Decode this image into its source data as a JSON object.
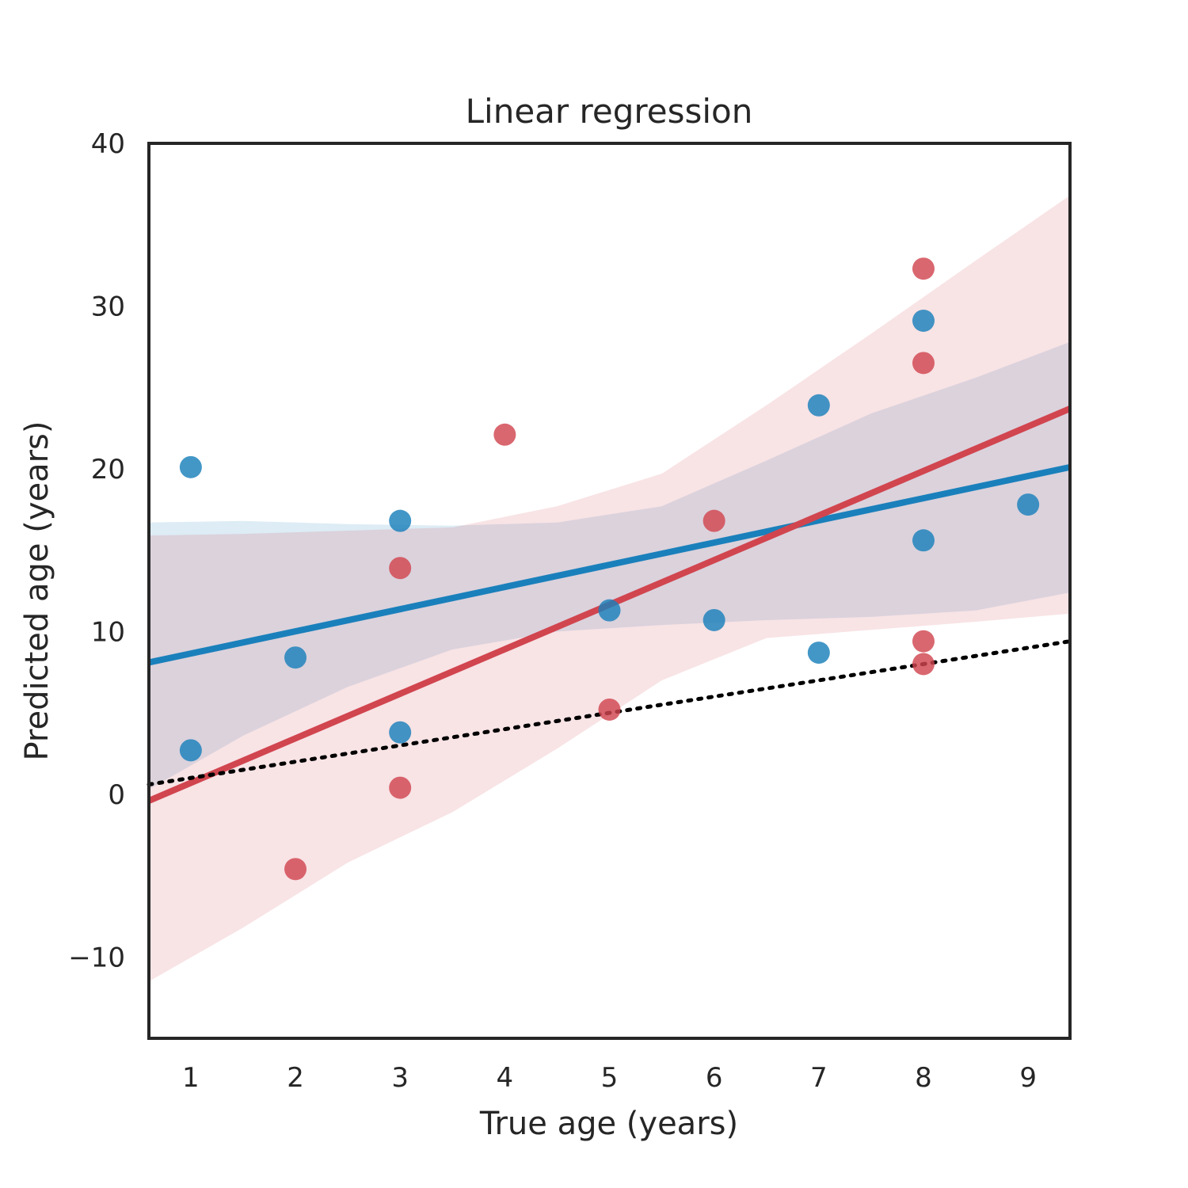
{
  "chart_data": {
    "type": "scatter",
    "title": "Linear regression",
    "xlabel": "True age (years)",
    "ylabel": "Predicted age (years)",
    "xlim": [
      0.6,
      9.4
    ],
    "ylim": [
      -15,
      40
    ],
    "xticks": [
      1,
      2,
      3,
      4,
      5,
      6,
      7,
      8,
      9
    ],
    "yticks": [
      -10,
      0,
      10,
      20,
      30,
      40
    ],
    "ytick_labels": [
      "−10",
      "0",
      "10",
      "20",
      "30",
      "40"
    ],
    "grid": false,
    "legend": "none",
    "series": [
      {
        "color": "#1a80bb",
        "points": [
          {
            "x": 1,
            "y": 20.1
          },
          {
            "x": 1,
            "y": 2.7
          },
          {
            "x": 2,
            "y": 8.4
          },
          {
            "x": 3,
            "y": 16.8
          },
          {
            "x": 3,
            "y": 3.8
          },
          {
            "x": 5,
            "y": 11.3
          },
          {
            "x": 6,
            "y": 10.7
          },
          {
            "x": 7,
            "y": 23.9
          },
          {
            "x": 7,
            "y": 8.7
          },
          {
            "x": 8,
            "y": 29.1
          },
          {
            "x": 8,
            "y": 15.6
          },
          {
            "x": 9,
            "y": 17.8
          }
        ],
        "regression": {
          "x": [
            0.6,
            9.4
          ],
          "y": [
            8.1,
            20.1
          ]
        },
        "ci_band": {
          "x": [
            0.6,
            1.5,
            2.5,
            3.5,
            4.5,
            5.5,
            6.5,
            7.5,
            8.5,
            9.4
          ],
          "lower": [
            0.3,
            3.6,
            6.6,
            8.9,
            10.0,
            10.4,
            10.7,
            10.9,
            11.3,
            12.4
          ],
          "upper": [
            16.7,
            16.8,
            16.6,
            16.5,
            16.7,
            17.7,
            20.5,
            23.4,
            25.6,
            27.8
          ]
        }
      },
      {
        "color": "#d1454f",
        "points": [
          {
            "x": 2,
            "y": -4.6
          },
          {
            "x": 3,
            "y": 13.9
          },
          {
            "x": 3,
            "y": 0.4
          },
          {
            "x": 4,
            "y": 22.1
          },
          {
            "x": 5,
            "y": 5.2
          },
          {
            "x": 6,
            "y": 16.8
          },
          {
            "x": 8,
            "y": 32.3
          },
          {
            "x": 8,
            "y": 26.5
          },
          {
            "x": 8,
            "y": 9.4
          },
          {
            "x": 8,
            "y": 8.0
          }
        ],
        "regression": {
          "x": [
            0.6,
            9.4
          ],
          "y": [
            -0.4,
            23.7
          ]
        },
        "ci_band": {
          "x": [
            0.6,
            1.5,
            2.5,
            3.5,
            4.5,
            5.5,
            6.5,
            7.5,
            8.5,
            9.4
          ],
          "lower": [
            -11.5,
            -8.2,
            -4.2,
            -1.1,
            2.8,
            7.0,
            9.6,
            10.1,
            10.6,
            11.1
          ],
          "upper": [
            15.9,
            16.0,
            16.2,
            16.4,
            17.7,
            19.7,
            23.9,
            28.3,
            32.8,
            36.8
          ]
        }
      }
    ],
    "reference_line": {
      "style": "dotted",
      "color": "#000000",
      "x": [
        0.6,
        9.4
      ],
      "y": [
        0.6,
        9.4
      ]
    }
  }
}
